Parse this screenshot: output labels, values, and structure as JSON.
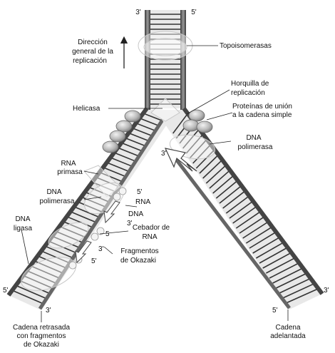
{
  "labels": {
    "top_left_3p": "3'",
    "top_right_5p": "5'",
    "direction_line1": "Dirección",
    "direction_line2": "general de la",
    "direction_line3": "replicación",
    "topoisomerases": "Topoisomerasas",
    "fork_line1": "Horquilla de",
    "fork_line2": "replicación",
    "helicase": "Helicasa",
    "ssb_line1": "Proteínas de unión",
    "ssb_line2": "a la cadena simple",
    "dnapol_right_line1": "DNA",
    "dnapol_right_line2": "polimerasa",
    "leading_3p": "3'",
    "rna_primase_line1": "RNA",
    "rna_primase_line2": "primasa",
    "dnapol_left_line1": "DNA",
    "dnapol_left_line2": "polimerasa",
    "okazaki_5p_a": "5'",
    "rna_small": "RNA",
    "dna_small": "DNA",
    "okazaki_3p_a": "3'",
    "primer_line1": "Cebador de",
    "primer_line2": "RNA",
    "okazaki_5_b": "5",
    "okazaki_3p_b": "3'",
    "okazaki_5p_c": "5'",
    "fragments_line1": "Fragmentos",
    "fragments_line2": "de Okazaki",
    "ligase_line1": "DNA",
    "ligase_line2": "ligasa",
    "left_bottom_5p": "5'",
    "left_bottom_3p": "3'",
    "lagging_line1": "Cadena  retrasada",
    "lagging_line2": "con  fragmentos",
    "lagging_line3": "de  Okazaki",
    "right_bottom_3p": "3'",
    "right_bottom_5p": "5'",
    "leading_line1": "Cadena",
    "leading_line2": "adelantada"
  }
}
